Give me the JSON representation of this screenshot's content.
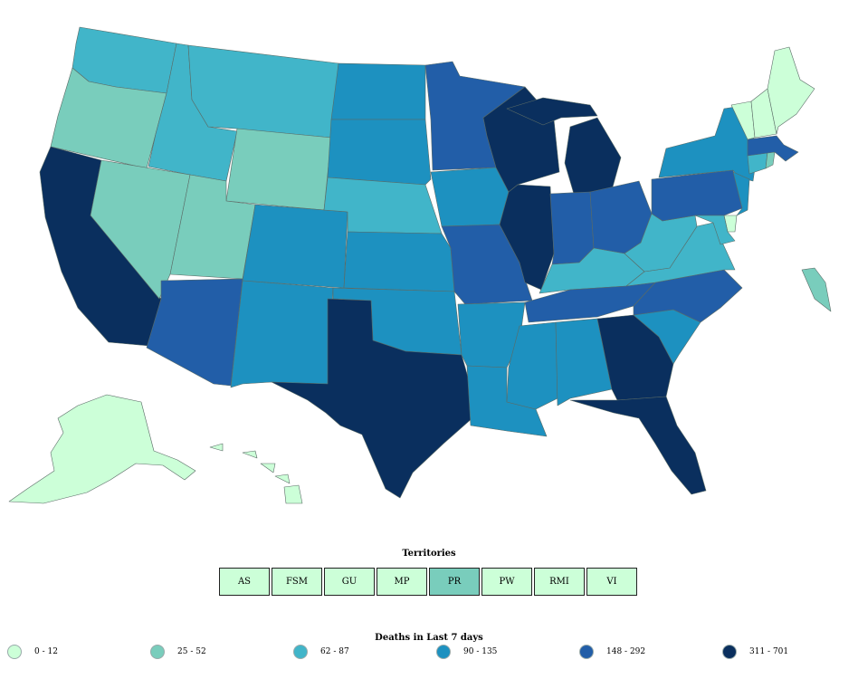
{
  "colors": {
    "bin0": "#ccffd8",
    "bin1": "#79cdbc",
    "bin2": "#41b5c9",
    "bin3": "#1d91c0",
    "bin4": "#225ea8",
    "bin5": "#0a2f5e"
  },
  "territories": {
    "title": "Territories",
    "items": [
      {
        "code": "AS",
        "bin": "bin0"
      },
      {
        "code": "FSM",
        "bin": "bin0"
      },
      {
        "code": "GU",
        "bin": "bin0"
      },
      {
        "code": "MP",
        "bin": "bin0"
      },
      {
        "code": "PR",
        "bin": "bin1"
      },
      {
        "code": "PW",
        "bin": "bin0"
      },
      {
        "code": "RMI",
        "bin": "bin0"
      },
      {
        "code": "VI",
        "bin": "bin0"
      }
    ]
  },
  "legend": {
    "title": "Deaths in Last 7 days",
    "items": [
      {
        "label": "0 - 12",
        "bin": "bin0"
      },
      {
        "label": "25 - 52",
        "bin": "bin1"
      },
      {
        "label": "62 - 87",
        "bin": "bin2"
      },
      {
        "label": "90 - 135",
        "bin": "bin3"
      },
      {
        "label": "148 - 292",
        "bin": "bin4"
      },
      {
        "label": "311 - 701",
        "bin": "bin5"
      }
    ]
  },
  "states": {
    "WA": "bin2",
    "OR": "bin1",
    "CA": "bin5",
    "NV": "bin1",
    "ID": "bin2",
    "MT": "bin2",
    "WY": "bin1",
    "UT": "bin1",
    "AZ": "bin4",
    "CO": "bin3",
    "NM": "bin3",
    "ND": "bin3",
    "SD": "bin3",
    "NE": "bin2",
    "KS": "bin3",
    "OK": "bin3",
    "TX": "bin5",
    "MN": "bin4",
    "IA": "bin3",
    "MO": "bin4",
    "AR": "bin3",
    "LA": "bin3",
    "WI": "bin5",
    "IL": "bin5",
    "MI": "bin5",
    "IN": "bin4",
    "OH": "bin4",
    "KY": "bin2",
    "TN": "bin4",
    "MS": "bin3",
    "AL": "bin3",
    "GA": "bin5",
    "FL": "bin5",
    "SC": "bin3",
    "NC": "bin4",
    "VA": "bin2",
    "WV": "bin2",
    "PA": "bin4",
    "NY": "bin3",
    "NJ": "bin3",
    "DE": "bin0",
    "MD": "bin2",
    "CT": "bin2",
    "RI": "bin1",
    "MA": "bin4",
    "VT": "bin0",
    "NH": "bin0",
    "ME": "bin0",
    "DC": "bin1",
    "AK": "bin0",
    "HI": "bin0",
    "PR": "bin1"
  }
}
